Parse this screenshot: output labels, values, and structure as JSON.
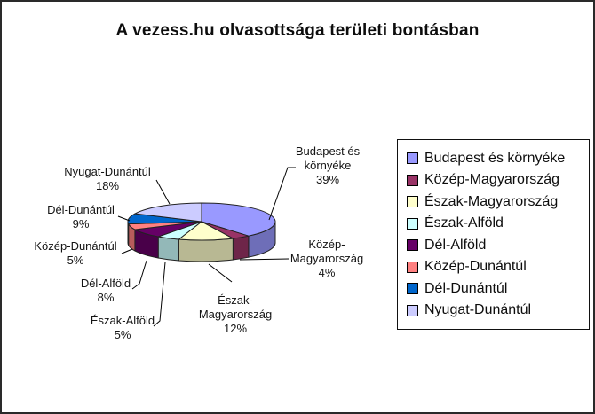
{
  "title": "A vezess.hu olvasottsága területi bontásban",
  "chart_data": {
    "type": "pie",
    "effect": "3d",
    "title": "A vezess.hu olvasottsága területi bontásban",
    "unit": "%",
    "start_angle_deg": 0,
    "direction": "clockwise",
    "legend_position": "right",
    "slices": [
      {
        "label": "Budapest és környéke",
        "value": 39,
        "pct_label": "39%",
        "color": "#9999FF"
      },
      {
        "label": "Közép-Magyarország",
        "value": 4,
        "pct_label": "4%",
        "color": "#993366"
      },
      {
        "label": "Észak-Magyarország",
        "value": 12,
        "pct_label": "12%",
        "color": "#FFFFCC"
      },
      {
        "label": "Észak-Alföld",
        "value": 5,
        "pct_label": "5%",
        "color": "#CCFFFF"
      },
      {
        "label": "Dél-Alföld",
        "value": 8,
        "pct_label": "8%",
        "color": "#660066"
      },
      {
        "label": "Közép-Dunántúl",
        "value": 5,
        "pct_label": "5%",
        "color": "#FF8080"
      },
      {
        "label": "Dél-Dunántúl",
        "value": 9,
        "pct_label": "9%",
        "color": "#0066CC"
      },
      {
        "label": "Nyugat-Dunántúl",
        "value": 18,
        "pct_label": "18%",
        "color": "#CCCCFF"
      }
    ]
  }
}
